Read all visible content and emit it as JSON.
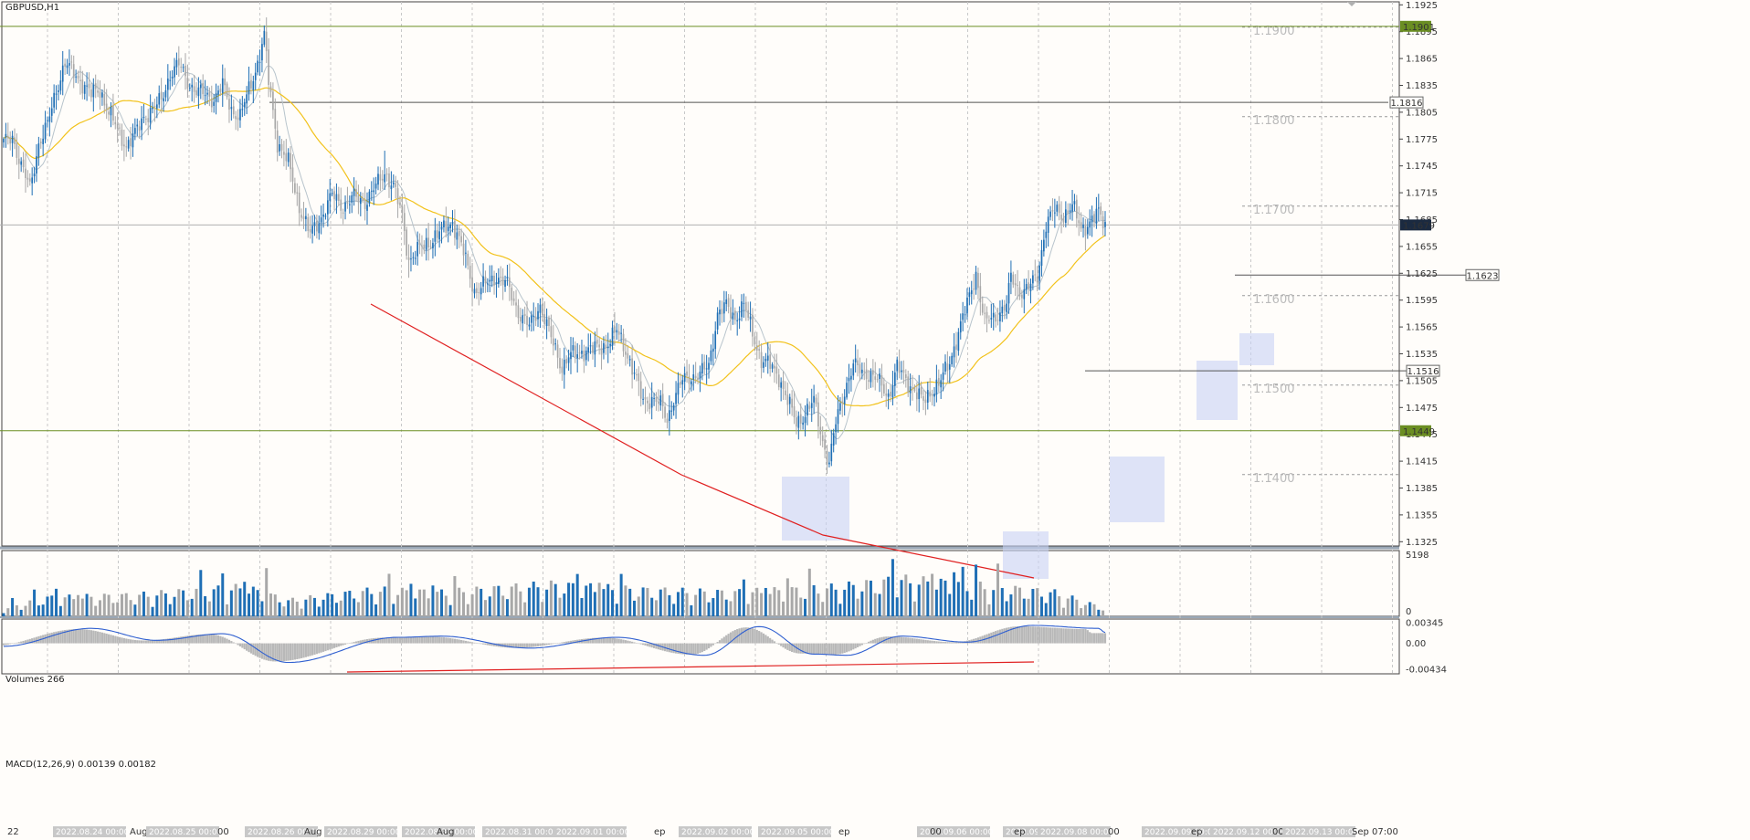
{
  "window_title": "GBPUSD,H1",
  "colors": {
    "background": "#fffdfa",
    "bull": "#1f6fb5",
    "bear": "#a8a8a8",
    "ma_fast": "#b8c4cc",
    "ma_slow": "#f2c21b",
    "trend_line": "#e02020",
    "hline_green": "#6b8e23",
    "hline_gray": "#555555",
    "zone": "#c8d2f5",
    "macd_signal": "#2f5fd0",
    "macd_hist": "#b8b8b8"
  },
  "price_scale": {
    "ticks": [
      "1.1925",
      "1.1895",
      "1.1865",
      "1.1835",
      "1.1805",
      "1.1775",
      "1.1745",
      "1.1715",
      "1.1685",
      "1.1655",
      "1.1625",
      "1.1595",
      "1.1565",
      "1.1535",
      "1.1505",
      "1.1475",
      "1.1445",
      "1.1415",
      "1.1385",
      "1.1355",
      "1.1325"
    ],
    "current_price": "1.1679",
    "tag_top": "1.1901",
    "tag_bottom": "1.1449"
  },
  "round_levels": [
    "1.1900",
    "1.1800",
    "1.1700",
    "1.1600",
    "1.1500",
    "1.1400"
  ],
  "level_labels": [
    "1.1816",
    "1.1623",
    "1.1516"
  ],
  "volumes_panel": {
    "title": "Volumes 266",
    "ticks": [
      "5198",
      "0"
    ]
  },
  "macd_panel": {
    "title": "MACD(12,26,9) 0.00139 0.00182",
    "ticks": [
      "0.00345",
      "0.00",
      "-0.00434"
    ]
  },
  "x_axis": {
    "labels": [
      "22",
      "2022.08.24 00:00",
      "Aug",
      "2022.08.25 00:00",
      "00",
      "2022.08.26 00:00",
      "Aug",
      "2022.08.29 00:00",
      "2022.08.30 00:00",
      "Aug",
      "2022.08.31 00:00",
      "2022.09.01 00:00",
      "ep",
      "2022.09.02 00:00",
      "2022.09.05 00:00",
      "ep",
      "2022.09.06 00:00",
      "00",
      "2022.09.07 00:00",
      "ep",
      "2022.09.08 00:00",
      "00",
      "2022.09.09 00:00",
      "ep",
      "2022.09.12 00:00",
      "00",
      "2022.09.13 00:00",
      "Sep 07:00"
    ]
  },
  "chart_data": {
    "type": "candlestick",
    "symbol": "GBPUSD",
    "timeframe": "H1",
    "ylim": [
      1.132,
      1.193
    ],
    "anchors": [
      [
        0,
        1.177
      ],
      [
        4,
        1.1778
      ],
      [
        8,
        1.1745
      ],
      [
        12,
        1.172
      ],
      [
        16,
        1.177
      ],
      [
        20,
        1.179
      ],
      [
        24,
        1.183
      ],
      [
        28,
        1.186
      ],
      [
        32,
        1.1848
      ],
      [
        36,
        1.1838
      ],
      [
        40,
        1.1825
      ],
      [
        44,
        1.183
      ],
      [
        48,
        1.1805
      ],
      [
        52,
        1.1785
      ],
      [
        56,
        1.1768
      ],
      [
        60,
        1.178
      ],
      [
        64,
        1.18
      ],
      [
        68,
        1.1808
      ],
      [
        72,
        1.1818
      ],
      [
        76,
        1.1848
      ],
      [
        80,
        1.1858
      ],
      [
        84,
        1.184
      ],
      [
        88,
        1.1828
      ],
      [
        92,
        1.1825
      ],
      [
        96,
        1.182
      ],
      [
        100,
        1.1835
      ],
      [
        104,
        1.1808
      ],
      [
        108,
        1.18
      ],
      [
        112,
        1.183
      ],
      [
        116,
        1.186
      ],
      [
        119,
        1.189
      ],
      [
        121,
        1.184
      ],
      [
        125,
        1.1772
      ],
      [
        130,
        1.1748
      ],
      [
        135,
        1.17
      ],
      [
        140,
        1.1668
      ],
      [
        145,
        1.1688
      ],
      [
        150,
        1.1712
      ],
      [
        155,
        1.17
      ],
      [
        160,
        1.171
      ],
      [
        165,
        1.1705
      ],
      [
        170,
        1.1722
      ],
      [
        174,
        1.1738
      ],
      [
        178,
        1.1722
      ],
      [
        182,
        1.1688
      ],
      [
        185,
        1.164
      ],
      [
        190,
        1.1652
      ],
      [
        195,
        1.1662
      ],
      [
        200,
        1.1672
      ],
      [
        205,
        1.1683
      ],
      [
        210,
        1.1648
      ],
      [
        215,
        1.1605
      ],
      [
        220,
        1.1612
      ],
      [
        225,
        1.1622
      ],
      [
        230,
        1.1612
      ],
      [
        235,
        1.1582
      ],
      [
        240,
        1.1565
      ],
      [
        245,
        1.159
      ],
      [
        250,
        1.1552
      ],
      [
        255,
        1.152
      ],
      [
        258,
        1.1532
      ],
      [
        262,
        1.1535
      ],
      [
        266,
        1.154
      ],
      [
        270,
        1.154
      ],
      [
        275,
        1.1545
      ],
      [
        280,
        1.156
      ],
      [
        284,
        1.154
      ],
      [
        288,
        1.1512
      ],
      [
        292,
        1.1482
      ],
      [
        296,
        1.1485
      ],
      [
        300,
        1.1478
      ],
      [
        303,
        1.1462
      ],
      [
        306,
        1.1485
      ],
      [
        310,
        1.1505
      ],
      [
        314,
        1.151
      ],
      [
        318,
        1.1512
      ],
      [
        322,
        1.1522
      ],
      [
        326,
        1.158
      ],
      [
        330,
        1.1588
      ],
      [
        334,
        1.1575
      ],
      [
        338,
        1.159
      ],
      [
        342,
        1.1558
      ],
      [
        346,
        1.1528
      ],
      [
        350,
        1.1522
      ],
      [
        354,
        1.151
      ],
      [
        358,
        1.1482
      ],
      [
        362,
        1.1458
      ],
      [
        366,
        1.1468
      ],
      [
        370,
        1.1482
      ],
      [
        374,
        1.1438
      ],
      [
        377,
        1.1412
      ],
      [
        380,
        1.1458
      ],
      [
        384,
        1.1495
      ],
      [
        388,
        1.1522
      ],
      [
        392,
        1.1515
      ],
      [
        396,
        1.1512
      ],
      [
        400,
        1.1502
      ],
      [
        404,
        1.1488
      ],
      [
        408,
        1.152
      ],
      [
        412,
        1.1505
      ],
      [
        416,
        1.1495
      ],
      [
        420,
        1.148
      ],
      [
        424,
        1.1495
      ],
      [
        428,
        1.1505
      ],
      [
        432,
        1.1525
      ],
      [
        436,
        1.156
      ],
      [
        440,
        1.159
      ],
      [
        444,
        1.1625
      ],
      [
        448,
        1.157
      ],
      [
        452,
        1.1575
      ],
      [
        456,
        1.1585
      ],
      [
        458,
        1.159
      ],
      [
        460,
        1.162
      ],
      [
        464,
        1.1605
      ],
      [
        468,
        1.1608
      ],
      [
        472,
        1.1622
      ],
      [
        476,
        1.168
      ],
      [
        480,
        1.1695
      ],
      [
        484,
        1.169
      ],
      [
        488,
        1.17
      ],
      [
        492,
        1.1675
      ],
      [
        496,
        1.1682
      ],
      [
        500,
        1.1692
      ],
      [
        503,
        1.168
      ]
    ],
    "volume_anchors": [
      [
        0,
        0.15
      ],
      [
        20,
        0.35
      ],
      [
        60,
        0.4
      ],
      [
        110,
        0.55
      ],
      [
        130,
        0.3
      ],
      [
        170,
        0.5
      ],
      [
        200,
        0.45
      ],
      [
        250,
        0.6
      ],
      [
        290,
        0.5
      ],
      [
        330,
        0.45
      ],
      [
        360,
        0.5
      ],
      [
        380,
        0.55
      ],
      [
        410,
        0.7
      ],
      [
        440,
        0.6
      ],
      [
        480,
        0.45
      ],
      [
        503,
        0.15
      ]
    ],
    "volume_max": 5198,
    "macd_anchors": [
      [
        0,
        -0.0005
      ],
      [
        40,
        0.0025
      ],
      [
        70,
        0.0005
      ],
      [
        100,
        0.0016
      ],
      [
        130,
        -0.0032
      ],
      [
        180,
        0.001
      ],
      [
        200,
        0.0012
      ],
      [
        240,
        -0.0008
      ],
      [
        280,
        0.001
      ],
      [
        320,
        -0.002
      ],
      [
        345,
        0.0028
      ],
      [
        370,
        -0.0018
      ],
      [
        385,
        -0.002
      ],
      [
        410,
        0.0012
      ],
      [
        440,
        0.0002
      ],
      [
        470,
        0.003
      ],
      [
        500,
        0.0025
      ],
      [
        503,
        0.0018
      ]
    ],
    "macd_ylim": [
      -0.00434,
      0.00345
    ],
    "ma_fast_period": 10,
    "ma_slow_period": 40,
    "zones": [
      [
        294,
        0
      ],
      [
        380,
        1
      ],
      [
        427,
        2
      ],
      [
        470,
        3
      ]
    ]
  }
}
